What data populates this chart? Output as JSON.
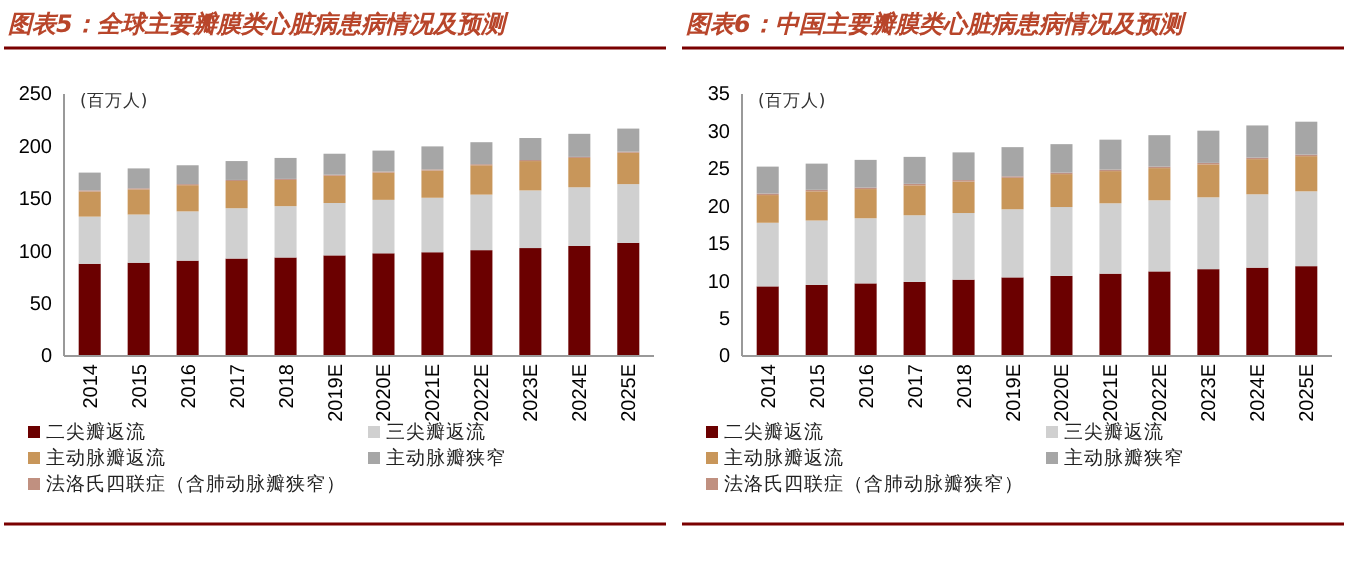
{
  "chart_data": [
    {
      "type": "bar",
      "title": "图表5：全球主要瓣膜类心脏病患病情况及预测",
      "ylabel": "(百万人)",
      "stacked": true,
      "legend": "bottom",
      "grid": false,
      "categories": [
        "2014",
        "2015",
        "2016",
        "2017",
        "2018",
        "2019E",
        "2020E",
        "2021E",
        "2022E",
        "2023E",
        "2024E",
        "2025E"
      ],
      "ylim": [
        0,
        250
      ],
      "yticks": [
        0,
        50,
        100,
        150,
        200,
        250
      ],
      "series": [
        {
          "name": "二尖瓣返流",
          "color": "#6b0000",
          "values": [
            88,
            89,
            91,
            93,
            94,
            96,
            98,
            99,
            101,
            103,
            105,
            108
          ]
        },
        {
          "name": "三尖瓣返流",
          "color": "#d0d0d0",
          "values": [
            45,
            46,
            47,
            48,
            49,
            50,
            51,
            52,
            53,
            55,
            56,
            56
          ]
        },
        {
          "name": "主动脉瓣返流",
          "color": "#c8965a",
          "values": [
            24,
            24,
            25,
            26,
            25,
            26,
            26,
            26,
            28,
            28,
            28,
            30
          ]
        },
        {
          "name": "法洛氏四联症（含肺动脉瓣狭窄）",
          "color": "#c09080",
          "values": [
            1,
            1,
            1,
            1,
            1,
            1,
            1,
            1,
            1,
            1,
            1,
            1
          ]
        },
        {
          "name": "主动脉瓣狭窄",
          "color": "#a6a6a6",
          "values": [
            17,
            19,
            18,
            18,
            20,
            20,
            20,
            22,
            21,
            21,
            22,
            22
          ]
        }
      ]
    },
    {
      "type": "bar",
      "title": "图表6：中国主要瓣膜类心脏病患病情况及预测",
      "ylabel": "(百万人)",
      "stacked": true,
      "legend": "bottom",
      "grid": false,
      "categories": [
        "2014",
        "2015",
        "2016",
        "2017",
        "2018",
        "2019E",
        "2020E",
        "2021E",
        "2022E",
        "2023E",
        "2024E",
        "2025E"
      ],
      "ylim": [
        0,
        35
      ],
      "yticks": [
        0,
        5,
        10,
        15,
        20,
        25,
        30,
        35
      ],
      "series": [
        {
          "name": "二尖瓣返流",
          "color": "#6b0000",
          "values": [
            9.3,
            9.5,
            9.7,
            9.9,
            10.2,
            10.5,
            10.7,
            11.0,
            11.3,
            11.6,
            11.8,
            12.0
          ]
        },
        {
          "name": "三尖瓣返流",
          "color": "#d0d0d0",
          "values": [
            8.5,
            8.6,
            8.7,
            8.9,
            8.9,
            9.1,
            9.2,
            9.4,
            9.5,
            9.6,
            9.8,
            10.0
          ]
        },
        {
          "name": "主动脉瓣返流",
          "color": "#c8965a",
          "values": [
            3.7,
            3.9,
            3.9,
            4.0,
            4.2,
            4.2,
            4.4,
            4.3,
            4.3,
            4.4,
            4.7,
            4.7
          ]
        },
        {
          "name": "法洛氏四联症（含肺动脉瓣狭窄）",
          "color": "#c09080",
          "values": [
            0.2,
            0.2,
            0.2,
            0.2,
            0.2,
            0.2,
            0.2,
            0.2,
            0.2,
            0.2,
            0.2,
            0.2
          ]
        },
        {
          "name": "主动脉瓣狭窄",
          "color": "#a6a6a6",
          "values": [
            3.6,
            3.5,
            3.7,
            3.6,
            3.7,
            3.9,
            3.8,
            4.0,
            4.2,
            4.3,
            4.3,
            4.4
          ]
        }
      ]
    }
  ]
}
